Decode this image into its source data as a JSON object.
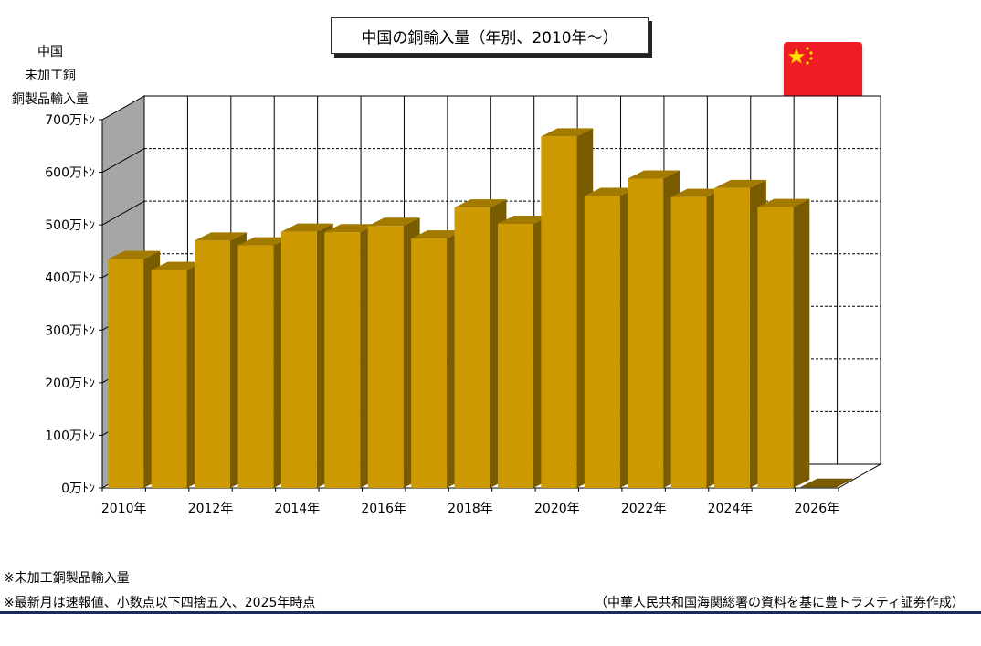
{
  "chart_data": {
    "type": "bar",
    "title": "中国の銅輸入量（年別、2010年～）",
    "ylabel_lines": [
      "中国",
      "未加工銅",
      "銅製品輸入量"
    ],
    "categories": [
      "2010年",
      "2011年",
      "2012年",
      "2013年",
      "2014年",
      "2015年",
      "2016年",
      "2017年",
      "2018年",
      "2019年",
      "2020年",
      "2021年",
      "2022年",
      "2023年",
      "2024年",
      "2025年",
      "2026年"
    ],
    "x_tick_labels": [
      "2010年",
      "2012年",
      "2014年",
      "2016年",
      "2018年",
      "2020年",
      "2022年",
      "2024年",
      "2026年"
    ],
    "values": [
      435,
      414,
      470,
      461,
      487,
      486,
      498,
      474,
      533,
      502,
      668,
      555,
      588,
      553,
      570,
      534,
      0
    ],
    "y_unit": "万トン",
    "ylim": [
      0,
      700
    ],
    "y_ticks": [
      0,
      100,
      200,
      300,
      400,
      500,
      600,
      700
    ],
    "y_tick_labels": [
      "0万ﾄﾝ",
      "100万ﾄﾝ",
      "200万ﾄﾝ",
      "300万ﾄﾝ",
      "400万ﾄﾝ",
      "500万ﾄﾝ",
      "600万ﾄﾝ",
      "700万ﾄﾝ"
    ],
    "bar_color": "#CC9900",
    "bar_side_color": "#7A5C00",
    "bar_top_color": "#A37A00",
    "back_wall_color": "#A6A6A6",
    "grid": "dashed",
    "style": "3d"
  },
  "notes": [
    "※未加工銅製品輸入量",
    "※最新月は速報値、小数点以下四捨五入、2025年時点"
  ],
  "source": "（中華人民共和国海関総署の資料を基に豊トラスティ証券作成）",
  "flag": {
    "country": "China",
    "icon": "china-flag-icon",
    "color": "#EE1C25",
    "star_color": "#FFDE00"
  }
}
